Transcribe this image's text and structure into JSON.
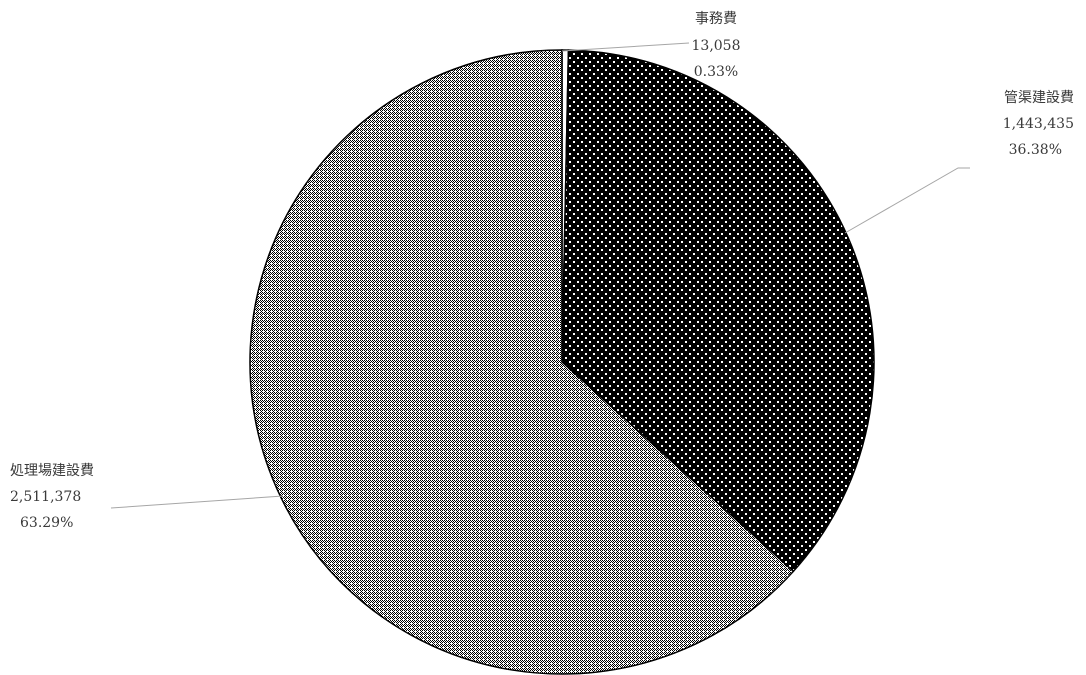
{
  "chart_data": {
    "type": "pie",
    "title": "",
    "start_angle_deg": 0,
    "direction": "clockwise",
    "slices": [
      {
        "label": "事務費",
        "value_text": "13,058",
        "percent_text": "0.33%",
        "value": 13058,
        "percent": 0.33,
        "pattern": "white-solid"
      },
      {
        "label": "管渠建設費",
        "value_text": "1,443,435",
        "percent_text": "36.38%",
        "value": 1443435,
        "percent": 36.38,
        "pattern": "black-white-dots"
      },
      {
        "label": "処理場建設費",
        "value_text": "2,511,378",
        "percent_text": "63.29%",
        "value": 2511378,
        "percent": 63.29,
        "pattern": "gray-checker"
      }
    ],
    "colors": {
      "outline": "#000000",
      "leader": "#a6a6a6",
      "label_text": "#3a3a3a"
    }
  }
}
